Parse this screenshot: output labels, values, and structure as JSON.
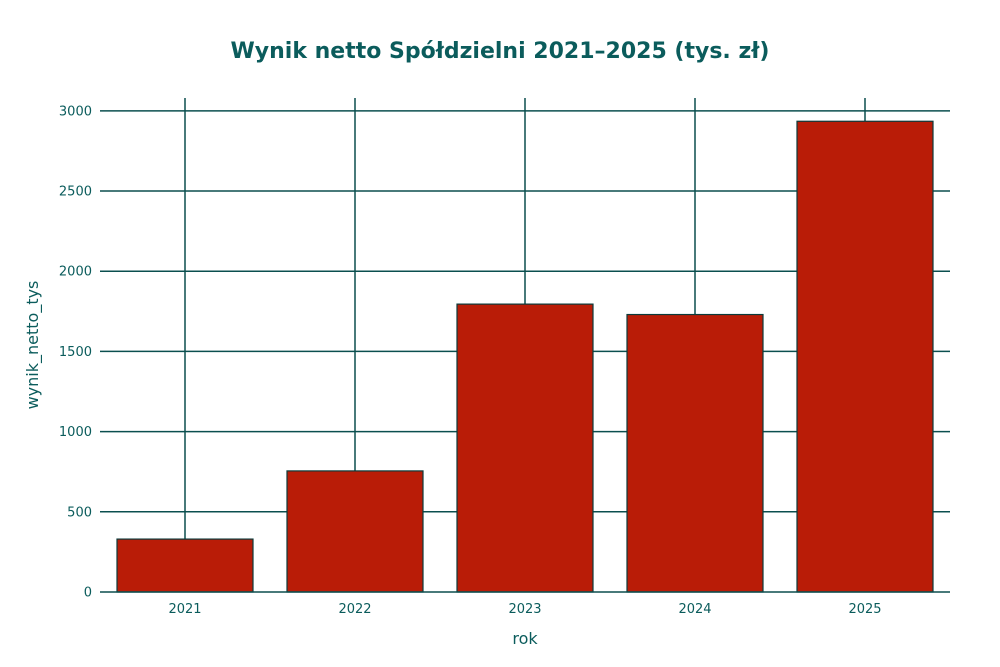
{
  "chart_data": {
    "type": "bar",
    "title": "Wynik netto Spółdzielni 2021–2025 (tys. zł)",
    "xlabel": "rok",
    "ylabel": "wynik_netto_tys",
    "categories": [
      "2021",
      "2022",
      "2023",
      "2024",
      "2025"
    ],
    "values": [
      330,
      755,
      1795,
      1730,
      2935
    ],
    "ylim": [
      0,
      3080
    ],
    "yticks": [
      0,
      500,
      1000,
      1500,
      2000,
      2500,
      3000
    ],
    "ytick_labels": [
      "0",
      "500",
      "1000",
      "1500",
      "2000",
      "2500",
      "3000"
    ],
    "grid": true,
    "legend": "none"
  },
  "colors": {
    "bar_fill": "#B91C07",
    "bar_stroke": "#0B3B3B",
    "text": "#0B5C5C",
    "grid": "#0B4F4F",
    "background": "#FFFFFF"
  }
}
